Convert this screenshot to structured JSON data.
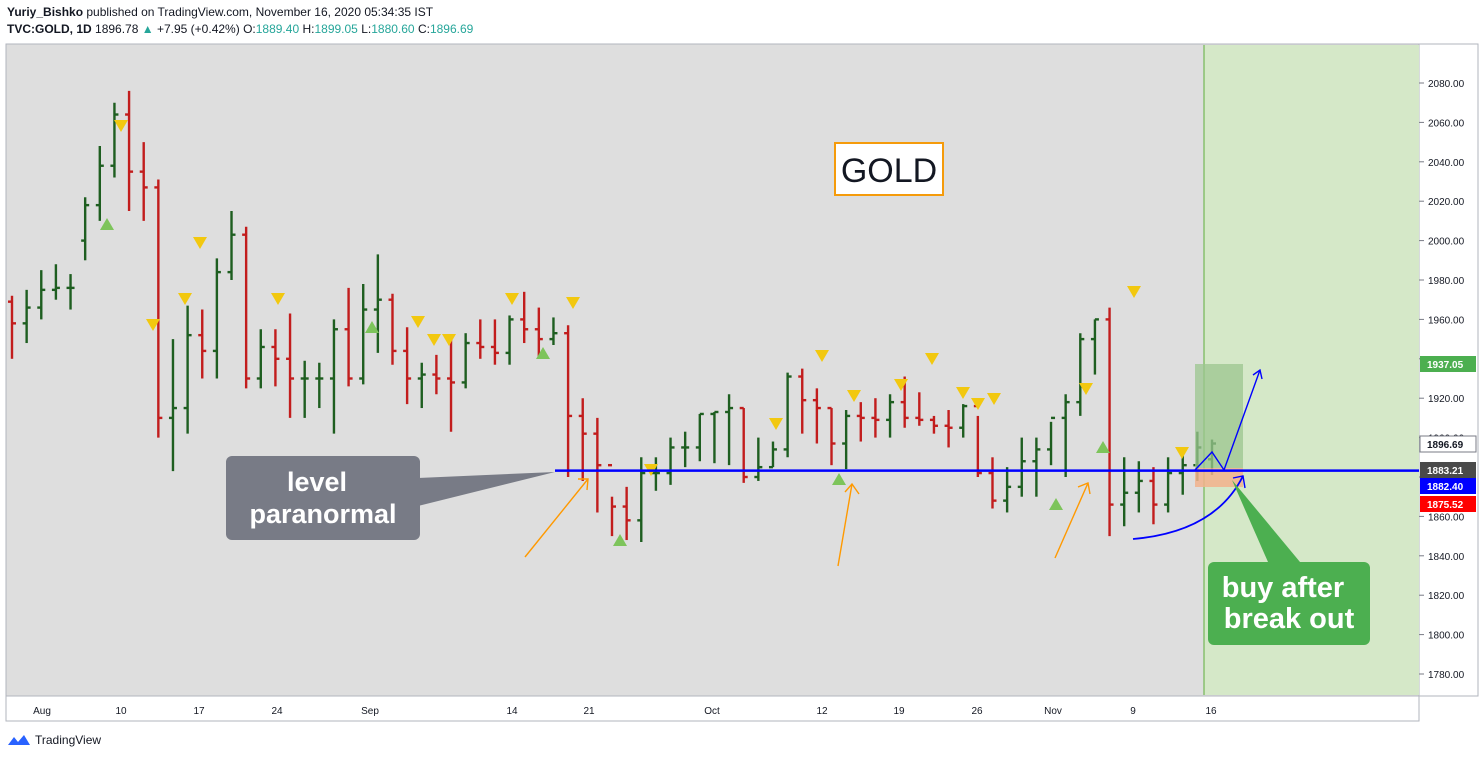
{
  "header": {
    "author": "Yuriy_Bishko",
    "published": "published on TradingView.com, November 16, 2020 05:34:35 IST",
    "symbol": "TVC:GOLD, 1D",
    "price": "1896.78",
    "change": "+7.95 (+0.42%)",
    "o_label": "O:",
    "o_value": "1889.40",
    "h_label": "H:",
    "h_value": "1899.05",
    "l_label": "L:",
    "l_value": "1880.60",
    "c_label": "C:",
    "c_value": "1896.69"
  },
  "colors": {
    "plot_bg": "#dedede",
    "up": "#1e5e20",
    "down": "#c21d1d",
    "level": "#0000ff",
    "zone": "#d5e8c8",
    "arrow_orange": "#ff9900",
    "tri_down": "#f2c80f",
    "tri_up": "#7dc45b",
    "callout_grey": "#787b86",
    "callout_green": "#4caf50"
  },
  "chart_data": {
    "type": "ohlc",
    "title": "GOLD",
    "ylim": [
      1760,
      2090
    ],
    "yticks": [
      "2080.00",
      "2060.00",
      "2040.00",
      "2020.00",
      "2000.00",
      "1980.00",
      "1960.00",
      "1940.00",
      "1920.00",
      "1900.00",
      "1880.00",
      "1860.00",
      "1840.00",
      "1820.00",
      "1800.00",
      "1780.00"
    ],
    "xlabels": [
      "Aug",
      "10",
      "17",
      "24",
      "Sep",
      "14",
      "21",
      "Oct",
      "12",
      "19",
      "26",
      "Nov",
      "9",
      "16"
    ],
    "bars": [
      [
        1969,
        1972,
        1940,
        1958
      ],
      [
        1958,
        1975,
        1948,
        1966
      ],
      [
        1966,
        1985,
        1960,
        1975
      ],
      [
        1975,
        1988,
        1970,
        1976
      ],
      [
        1976,
        1983,
        1965,
        1976
      ],
      [
        2000,
        2022,
        1990,
        2018
      ],
      [
        2018,
        2048,
        2010,
        2038
      ],
      [
        2038,
        2070,
        2032,
        2064
      ],
      [
        2064,
        2076,
        2015,
        2035
      ],
      [
        2035,
        2050,
        2010,
        2027
      ],
      [
        2027,
        2031,
        1900,
        1910
      ],
      [
        1910,
        1950,
        1883,
        1915
      ],
      [
        1915,
        1967,
        1902,
        1952
      ],
      [
        1952,
        1965,
        1930,
        1944
      ],
      [
        1944,
        1991,
        1930,
        1984
      ],
      [
        1984,
        2015,
        1980,
        2003
      ],
      [
        2003,
        2007,
        1925,
        1930
      ],
      [
        1930,
        1955,
        1925,
        1946
      ],
      [
        1946,
        1955,
        1926,
        1940
      ],
      [
        1940,
        1963,
        1910,
        1930
      ],
      [
        1930,
        1939,
        1910,
        1930
      ],
      [
        1930,
        1938,
        1915,
        1930
      ],
      [
        1930,
        1960,
        1902,
        1955
      ],
      [
        1955,
        1976,
        1926,
        1930
      ],
      [
        1930,
        1978,
        1927,
        1965
      ],
      [
        1965,
        1993,
        1943,
        1970
      ],
      [
        1970,
        1973,
        1937,
        1944
      ],
      [
        1944,
        1956,
        1917,
        1930
      ],
      [
        1930,
        1938,
        1915,
        1932
      ],
      [
        1932,
        1942,
        1922,
        1930
      ],
      [
        1930,
        1950,
        1903,
        1928
      ],
      [
        1928,
        1953,
        1925,
        1948
      ],
      [
        1948,
        1960,
        1940,
        1946
      ],
      [
        1946,
        1960,
        1937,
        1943
      ],
      [
        1943,
        1962,
        1937,
        1960
      ],
      [
        1960,
        1974,
        1948,
        1955
      ],
      [
        1955,
        1966,
        1940,
        1950
      ],
      [
        1950,
        1961,
        1947,
        1953
      ],
      [
        1953,
        1957,
        1880,
        1911
      ],
      [
        1911,
        1920,
        1878,
        1902
      ],
      [
        1902,
        1910,
        1862,
        1886
      ],
      [
        1886,
        1870,
        1850,
        1865
      ],
      [
        1865,
        1875,
        1848,
        1858
      ],
      [
        1858,
        1890,
        1847,
        1882
      ],
      [
        1882,
        1890,
        1873,
        1882
      ],
      [
        1882,
        1900,
        1876,
        1895
      ],
      [
        1895,
        1903,
        1885,
        1895
      ],
      [
        1895,
        1912,
        1888,
        1912
      ],
      [
        1912,
        1913,
        1887,
        1913
      ],
      [
        1913,
        1922,
        1886,
        1915
      ],
      [
        1915,
        1915,
        1877,
        1880
      ],
      [
        1880,
        1900,
        1878,
        1885
      ],
      [
        1885,
        1898,
        1885,
        1894
      ],
      [
        1894,
        1933,
        1890,
        1931
      ],
      [
        1931,
        1935,
        1902,
        1919
      ],
      [
        1919,
        1925,
        1897,
        1915
      ],
      [
        1915,
        1915,
        1886,
        1897
      ],
      [
        1897,
        1914,
        1884,
        1911
      ],
      [
        1911,
        1918,
        1898,
        1910
      ],
      [
        1910,
        1920,
        1900,
        1909
      ],
      [
        1909,
        1922,
        1900,
        1918
      ],
      [
        1918,
        1931,
        1905,
        1910
      ],
      [
        1910,
        1923,
        1906,
        1909
      ],
      [
        1909,
        1911,
        1902,
        1906
      ],
      [
        1906,
        1914,
        1895,
        1905
      ],
      [
        1905,
        1917,
        1900,
        1916
      ],
      [
        1916,
        1911,
        1880,
        1882
      ],
      [
        1882,
        1890,
        1864,
        1868
      ],
      [
        1868,
        1885,
        1862,
        1875
      ],
      [
        1875,
        1900,
        1870,
        1888
      ],
      [
        1888,
        1900,
        1870,
        1894
      ],
      [
        1894,
        1908,
        1886,
        1910
      ],
      [
        1910,
        1922,
        1880,
        1918
      ],
      [
        1918,
        1953,
        1911,
        1950
      ],
      [
        1950,
        1960,
        1932,
        1960
      ],
      [
        1960,
        1966,
        1850,
        1866
      ],
      [
        1866,
        1890,
        1855,
        1872
      ],
      [
        1872,
        1888,
        1862,
        1878
      ],
      [
        1878,
        1885,
        1856,
        1866
      ],
      [
        1866,
        1890,
        1862,
        1882
      ],
      [
        1882,
        1895,
        1871,
        1886
      ],
      [
        1886,
        1903,
        1878,
        1895
      ],
      [
        1889,
        1899,
        1881,
        1897
      ]
    ],
    "level": 1883.21,
    "price_labels": [
      {
        "value": 1937.05,
        "text": "1937.05"
      },
      {
        "value": 1896.69,
        "text": "1896.69"
      },
      {
        "value": 1883.21,
        "text": "1883.21"
      },
      {
        "value": 1882.4,
        "text": "1882.40"
      },
      {
        "value": 1875.52,
        "text": "1875.52"
      }
    ],
    "annotations": {
      "title_box": "GOLD",
      "level_callout_1": "level",
      "level_callout_2": "paranormal",
      "buy_callout_1": "buy after",
      "buy_callout_2": "break out"
    }
  },
  "footer": {
    "brand": "TradingView"
  }
}
